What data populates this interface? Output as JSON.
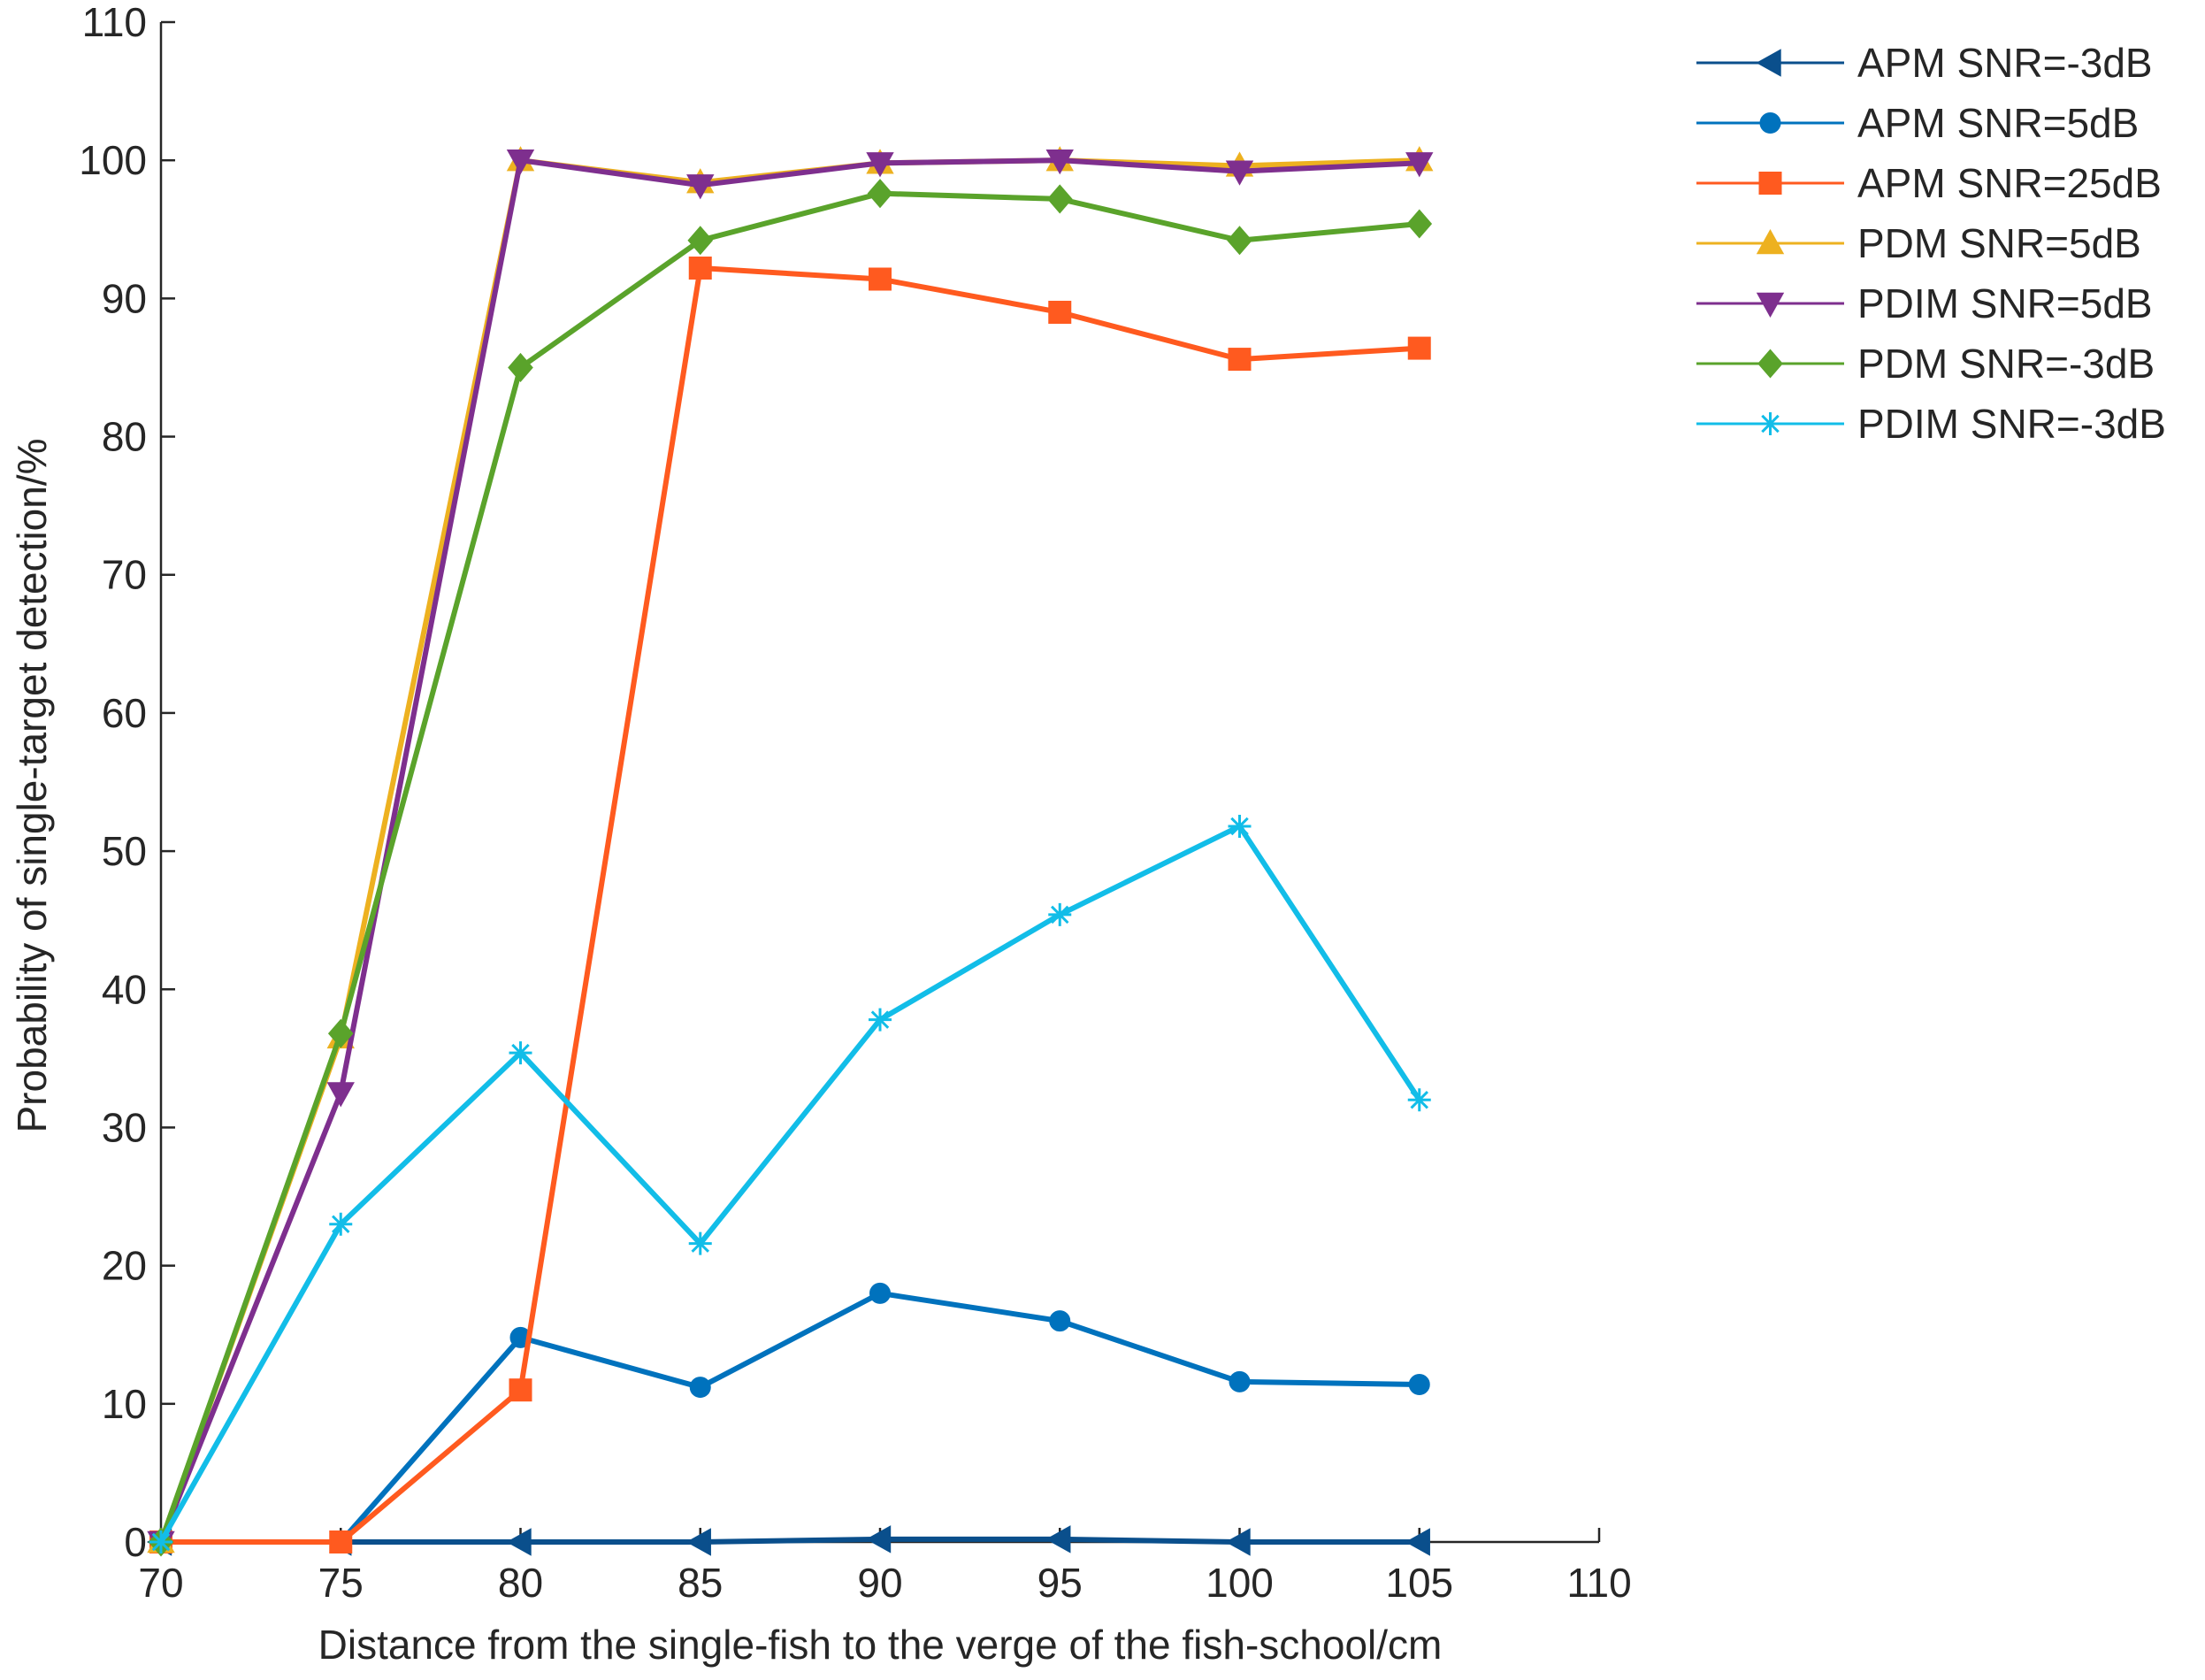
{
  "chart_data": {
    "type": "line",
    "title": "",
    "xlabel": "Distance from the single-fish to the verge of the fish-school/cm",
    "ylabel": "Probability of single-target detection/%",
    "xlim": [
      70,
      110
    ],
    "ylim": [
      0,
      110
    ],
    "xticks": [
      70,
      75,
      80,
      85,
      90,
      95,
      100,
      105,
      110
    ],
    "yticks": [
      0,
      10,
      20,
      30,
      40,
      50,
      60,
      70,
      80,
      90,
      100,
      110
    ],
    "grid": false,
    "legend_position": "outside-top-right",
    "x": [
      70,
      75,
      80,
      85,
      90,
      95,
      100,
      105
    ],
    "series": [
      {
        "name": "APM SNR=-3dB",
        "color": "#0a4f8c",
        "marker": "triangle-left",
        "values": [
          0,
          0,
          0,
          0,
          0.2,
          0.2,
          0,
          0
        ]
      },
      {
        "name": "APM SNR=5dB",
        "color": "#0072bd",
        "marker": "circle",
        "values": [
          0,
          0,
          14.8,
          11.2,
          18,
          16,
          11.6,
          11.4
        ]
      },
      {
        "name": "APM SNR=25dB",
        "color": "#ff5a1f",
        "marker": "square",
        "values": [
          0,
          0,
          11,
          92.2,
          91.4,
          89,
          85.6,
          86.4
        ]
      },
      {
        "name": "PDM SNR=5dB",
        "color": "#edb120",
        "marker": "triangle-up",
        "values": [
          0,
          36.5,
          100,
          98.4,
          99.8,
          100,
          99.6,
          100
        ]
      },
      {
        "name": "PDIM SNR=5dB",
        "color": "#7e2f8e",
        "marker": "triangle-down",
        "values": [
          0,
          32.5,
          100,
          98.2,
          99.8,
          100,
          99.2,
          99.8
        ]
      },
      {
        "name": "PDM SNR=-3dB",
        "color": "#5aa32b",
        "marker": "diamond",
        "values": [
          0,
          36.8,
          85,
          94.2,
          97.6,
          97.2,
          94.2,
          95.4
        ]
      },
      {
        "name": "PDIM SNR=-3dB",
        "color": "#12bde8",
        "marker": "asterisk",
        "values": [
          0,
          23,
          35.4,
          21.6,
          37.8,
          45.4,
          51.8,
          32
        ]
      }
    ]
  }
}
